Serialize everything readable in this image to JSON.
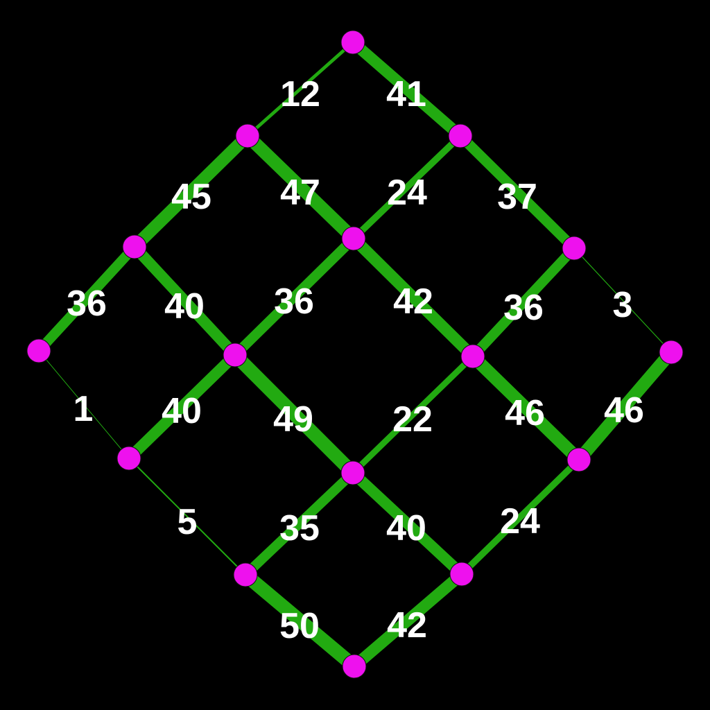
{
  "colors": {
    "background": "#000000",
    "edge": "#22aa11",
    "node": "#ee11ee",
    "label": "#ffffff"
  },
  "graph": {
    "nodes": [
      "n0",
      "n1",
      "n2",
      "n3",
      "n4",
      "n5",
      "n6",
      "n7",
      "n8",
      "n9",
      "n10",
      "n11",
      "n12",
      "n13",
      "n14",
      "n15"
    ],
    "edges": [
      {
        "from": "n0",
        "to": "n1",
        "weight": 12
      },
      {
        "from": "n0",
        "to": "n2",
        "weight": 41
      },
      {
        "from": "n1",
        "to": "n3",
        "weight": 45
      },
      {
        "from": "n1",
        "to": "n4",
        "weight": 47
      },
      {
        "from": "n2",
        "to": "n4",
        "weight": 24
      },
      {
        "from": "n2",
        "to": "n5",
        "weight": 37
      },
      {
        "from": "n3",
        "to": "n6",
        "weight": 36
      },
      {
        "from": "n3",
        "to": "n7",
        "weight": 40
      },
      {
        "from": "n4",
        "to": "n7",
        "weight": 36
      },
      {
        "from": "n4",
        "to": "n8",
        "weight": 42
      },
      {
        "from": "n5",
        "to": "n8",
        "weight": 36
      },
      {
        "from": "n5",
        "to": "n9",
        "weight": 3
      },
      {
        "from": "n6",
        "to": "n10",
        "weight": 1
      },
      {
        "from": "n7",
        "to": "n10",
        "weight": 40
      },
      {
        "from": "n7",
        "to": "n11",
        "weight": 49
      },
      {
        "from": "n8",
        "to": "n11",
        "weight": 22
      },
      {
        "from": "n8",
        "to": "n12",
        "weight": 46
      },
      {
        "from": "n9",
        "to": "n12",
        "weight": 46
      },
      {
        "from": "n10",
        "to": "n13",
        "weight": 5
      },
      {
        "from": "n11",
        "to": "n13",
        "weight": 35
      },
      {
        "from": "n11",
        "to": "n14",
        "weight": 40
      },
      {
        "from": "n12",
        "to": "n14",
        "weight": 24
      },
      {
        "from": "n13",
        "to": "n15",
        "weight": 50
      },
      {
        "from": "n14",
        "to": "n15",
        "weight": 42
      }
    ]
  }
}
